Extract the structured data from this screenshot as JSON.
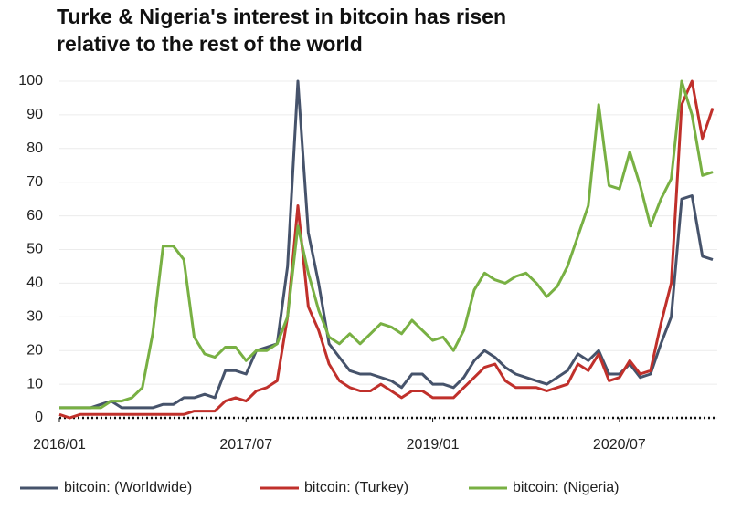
{
  "chart_data": {
    "type": "line",
    "title": [
      "Turke & Nigeria's interest in bitcoin has risen",
      "relative to the rest of the world"
    ],
    "x": [
      "2016/01",
      "2016/02",
      "2016/03",
      "2016/04",
      "2016/05",
      "2016/06",
      "2016/07",
      "2016/08",
      "2016/09",
      "2016/10",
      "2016/11",
      "2016/12",
      "2017/01",
      "2017/02",
      "2017/03",
      "2017/04",
      "2017/05",
      "2017/06",
      "2017/07",
      "2017/08",
      "2017/09",
      "2017/10",
      "2017/11",
      "2017/12",
      "2018/01",
      "2018/02",
      "2018/03",
      "2018/04",
      "2018/05",
      "2018/06",
      "2018/07",
      "2018/08",
      "2018/09",
      "2018/10",
      "2018/11",
      "2018/12",
      "2019/01",
      "2019/02",
      "2019/03",
      "2019/04",
      "2019/05",
      "2019/06",
      "2019/07",
      "2019/08",
      "2019/09",
      "2019/10",
      "2019/11",
      "2019/12",
      "2020/01",
      "2020/02",
      "2020/03",
      "2020/04",
      "2020/05",
      "2020/06",
      "2020/07",
      "2020/08",
      "2020/09",
      "2020/10",
      "2020/11",
      "2020/12",
      "2021/01",
      "2021/02",
      "2021/03",
      "2021/04"
    ],
    "xticks": [
      "2016/01",
      "2017/07",
      "2019/01",
      "2020/07"
    ],
    "series": [
      {
        "name": "bitcoin: (Worldwide)",
        "color": "#46536b",
        "values": [
          3,
          3,
          3,
          3,
          4,
          5,
          3,
          3,
          3,
          3,
          4,
          4,
          6,
          6,
          7,
          6,
          14,
          14,
          13,
          20,
          21,
          22,
          45,
          100,
          55,
          40,
          22,
          18,
          14,
          13,
          13,
          12,
          11,
          9,
          13,
          13,
          10,
          10,
          9,
          12,
          17,
          20,
          18,
          15,
          13,
          12,
          11,
          10,
          12,
          14,
          19,
          17,
          20,
          13,
          13,
          16,
          12,
          13,
          22,
          30,
          65,
          66,
          48,
          47
        ]
      },
      {
        "name": "bitcoin: (Turkey)",
        "color": "#c0302b",
        "values": [
          1,
          0,
          1,
          1,
          1,
          1,
          1,
          1,
          1,
          1,
          1,
          1,
          1,
          2,
          2,
          2,
          5,
          6,
          5,
          8,
          9,
          11,
          30,
          63,
          33,
          26,
          16,
          11,
          9,
          8,
          8,
          10,
          8,
          6,
          8,
          8,
          6,
          6,
          6,
          9,
          12,
          15,
          16,
          11,
          9,
          9,
          9,
          8,
          9,
          10,
          16,
          14,
          19,
          11,
          12,
          17,
          13,
          14,
          28,
          40,
          93,
          100,
          83,
          92
        ]
      },
      {
        "name": "bitcoin: (Nigeria)",
        "color": "#78b043",
        "values": [
          3,
          3,
          3,
          3,
          3,
          5,
          5,
          6,
          9,
          25,
          51,
          51,
          47,
          24,
          19,
          18,
          21,
          21,
          17,
          20,
          20,
          22,
          30,
          57,
          43,
          32,
          24,
          22,
          25,
          22,
          25,
          28,
          27,
          25,
          29,
          26,
          23,
          24,
          20,
          26,
          38,
          43,
          41,
          40,
          42,
          43,
          40,
          36,
          39,
          45,
          54,
          63,
          93,
          69,
          68,
          79,
          69,
          57,
          65,
          71,
          100,
          90,
          72,
          73
        ]
      }
    ],
    "ylim": [
      0,
      100
    ],
    "yticks": [
      0,
      10,
      20,
      30,
      40,
      50,
      60,
      70,
      80,
      90,
      100
    ],
    "grid": true
  }
}
